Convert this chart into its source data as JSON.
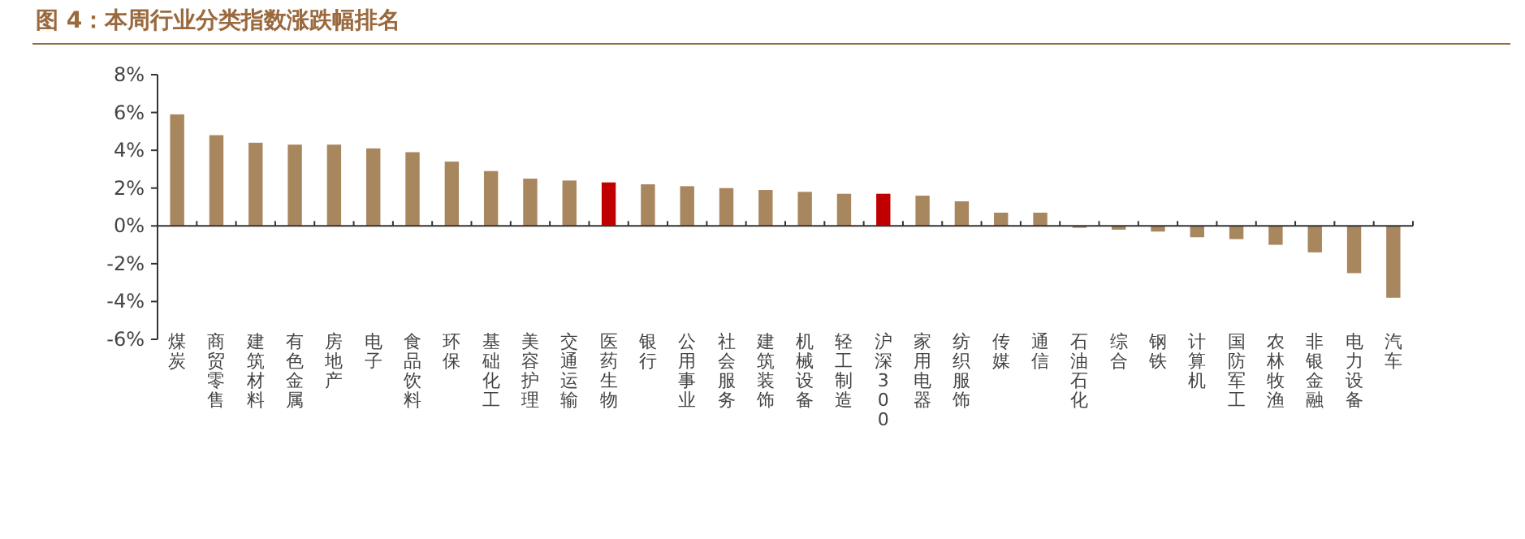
{
  "chart_data": {
    "type": "bar",
    "title": "图 4：本周行业分类指数涨跌幅排名",
    "categories": [
      "煤炭",
      "商贸零售",
      "建筑材料",
      "有色金属",
      "房地产",
      "电子",
      "食品饮料",
      "环保",
      "基础化工",
      "美容护理",
      "交通运输",
      "医药生物",
      "银行",
      "公用事业",
      "社会服务",
      "建筑装饰",
      "机械设备",
      "轻工制造",
      "沪深300",
      "家用电器",
      "纺织服饰",
      "传媒",
      "通信",
      "石油石化",
      "综合",
      "钢铁",
      "计算机",
      "国防军工",
      "农林牧渔",
      "非银金融",
      "电力设备",
      "汽车"
    ],
    "values": [
      5.9,
      4.8,
      4.4,
      4.3,
      4.3,
      4.1,
      3.9,
      3.4,
      2.9,
      2.5,
      2.4,
      2.3,
      2.2,
      2.1,
      2.0,
      1.9,
      1.8,
      1.7,
      1.7,
      1.6,
      1.3,
      0.7,
      0.7,
      -0.1,
      -0.2,
      -0.3,
      -0.6,
      -0.7,
      -1.0,
      -1.4,
      -2.5,
      -3.8
    ],
    "colors": [
      "#a8865e",
      "#a8865e",
      "#a8865e",
      "#a8865e",
      "#a8865e",
      "#a8865e",
      "#a8865e",
      "#a8865e",
      "#a8865e",
      "#a8865e",
      "#a8865e",
      "#c00000",
      "#a8865e",
      "#a8865e",
      "#a8865e",
      "#a8865e",
      "#a8865e",
      "#a8865e",
      "#c00000",
      "#a8865e",
      "#a8865e",
      "#a8865e",
      "#a8865e",
      "#a8865e",
      "#a8865e",
      "#a8865e",
      "#a8865e",
      "#a8865e",
      "#a8865e",
      "#a8865e",
      "#a8865e",
      "#a8865e"
    ],
    "ylim": [
      -6,
      8
    ],
    "yticks": [
      {
        "value": -6,
        "label": "-6%"
      },
      {
        "value": -4,
        "label": "-4%"
      },
      {
        "value": -2,
        "label": "-2%"
      },
      {
        "value": 0,
        "label": "0%"
      },
      {
        "value": 2,
        "label": "2%"
      },
      {
        "value": 4,
        "label": "4%"
      },
      {
        "value": 6,
        "label": "6%"
      },
      {
        "value": 8,
        "label": "8%"
      }
    ]
  }
}
